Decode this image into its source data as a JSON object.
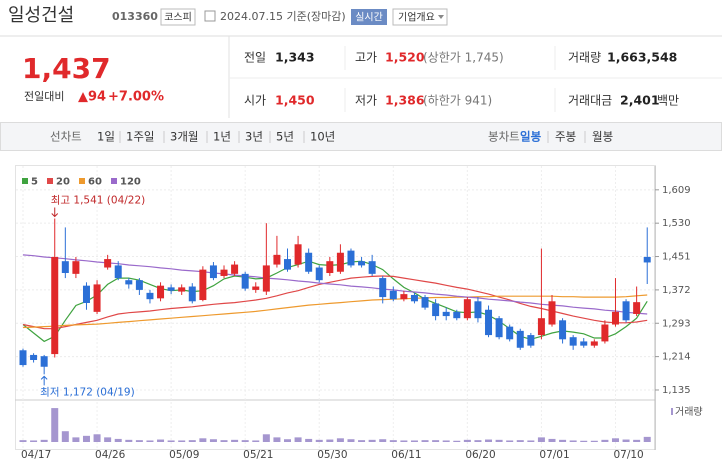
{
  "header": {
    "name": "일성건설",
    "code": "013360",
    "market": "코스피",
    "date": "2024.07.15 기준(장마감)",
    "realtime": "실시간",
    "company": "기업개요"
  },
  "price": {
    "current": "1,437",
    "change_label": "전일대비",
    "change": "▲94",
    "change_pct": "+7.00%"
  },
  "stats": {
    "prev_label": "전일",
    "prev": "1,343",
    "high_label": "고가",
    "high": "1,520",
    "upper": "(상한가 1,745)",
    "volume_label": "거래량",
    "volume": "1,663,548",
    "open_label": "시가",
    "open": "1,450",
    "low_label": "저가",
    "low": "1,386",
    "lower": "(하한가 941)",
    "amount_label": "거래대금",
    "amount": "2,401",
    "amount_unit": "백만"
  },
  "toolbar": {
    "line_label": "선차트",
    "line_periods": [
      "1일",
      "1주일",
      "3개월",
      "1년",
      "3년",
      "5년",
      "10년"
    ],
    "candle_label": "봉차트",
    "candle_periods": [
      "일봉",
      "주봉",
      "월봉"
    ]
  },
  "chart_data": {
    "type": "candlestick",
    "categories": [
      "04/17",
      null,
      null,
      null,
      null,
      null,
      null,
      "04/26",
      null,
      null,
      null,
      null,
      null,
      null,
      "05/09",
      null,
      null,
      null,
      null,
      null,
      null,
      "05/21",
      null,
      null,
      null,
      null,
      null,
      null,
      "05/30",
      null,
      null,
      null,
      null,
      null,
      null,
      "06/11",
      null,
      null,
      null,
      null,
      null,
      null,
      "06/20",
      null,
      null,
      null,
      null,
      null,
      null,
      "07/01",
      null,
      null,
      null,
      null,
      null,
      null,
      "07/10",
      null,
      null,
      null
    ],
    "open": [
      1229,
      1218,
      1215,
      1220,
      1440,
      1410,
      1382,
      1320,
      1425,
      1430,
      1395,
      1395,
      1365,
      1352,
      1378,
      1368,
      1380,
      1348,
      1430,
      1405,
      1410,
      1410,
      1372,
      1368,
      1432,
      1445,
      1432,
      1460,
      1425,
      1412,
      1415,
      1465,
      1440,
      1440,
      1400,
      1370,
      1350,
      1360,
      1355,
      1340,
      1320,
      1320,
      1305,
      1345,
      1325,
      1305,
      1285,
      1275,
      1265,
      1265,
      1290,
      1300,
      1260,
      1250,
      1240,
      1250,
      1290,
      1345,
      1315,
      1450
    ],
    "high": [
      1233,
      1222,
      1218,
      1541,
      1520,
      1450,
      1390,
      1395,
      1455,
      1440,
      1400,
      1400,
      1372,
      1390,
      1385,
      1385,
      1388,
      1428,
      1438,
      1430,
      1440,
      1415,
      1390,
      1530,
      1500,
      1470,
      1500,
      1470,
      1430,
      1450,
      1480,
      1470,
      1450,
      1455,
      1405,
      1380,
      1370,
      1365,
      1360,
      1350,
      1330,
      1325,
      1355,
      1355,
      1335,
      1310,
      1290,
      1280,
      1270,
      1470,
      1360,
      1305,
      1265,
      1258,
      1255,
      1300,
      1400,
      1350,
      1380,
      1520
    ],
    "low": [
      1190,
      1200,
      1172,
      1212,
      1400,
      1400,
      1325,
      1315,
      1420,
      1395,
      1375,
      1360,
      1340,
      1345,
      1362,
      1360,
      1340,
      1345,
      1395,
      1400,
      1405,
      1370,
      1365,
      1360,
      1425,
      1415,
      1425,
      1410,
      1390,
      1405,
      1410,
      1425,
      1425,
      1405,
      1340,
      1345,
      1345,
      1340,
      1325,
      1300,
      1300,
      1300,
      1300,
      1295,
      1260,
      1255,
      1250,
      1230,
      1235,
      1255,
      1285,
      1245,
      1230,
      1235,
      1235,
      1245,
      1285,
      1295,
      1310,
      1386
    ],
    "close": [
      1194,
      1206,
      1190,
      1450,
      1412,
      1440,
      1341,
      1385,
      1445,
      1400,
      1385,
      1372,
      1350,
      1382,
      1370,
      1378,
      1345,
      1420,
      1400,
      1420,
      1432,
      1375,
      1380,
      1430,
      1455,
      1420,
      1480,
      1415,
      1395,
      1440,
      1460,
      1430,
      1430,
      1410,
      1355,
      1350,
      1362,
      1345,
      1330,
      1310,
      1310,
      1305,
      1350,
      1305,
      1265,
      1260,
      1255,
      1235,
      1240,
      1305,
      1345,
      1255,
      1240,
      1240,
      1250,
      1290,
      1320,
      1300,
      1343,
      1437
    ],
    "volume": [
      600000,
      500000,
      700000,
      11000000,
      3500000,
      1500000,
      2000000,
      2500000,
      1500000,
      1000000,
      700000,
      600000,
      500000,
      800000,
      500000,
      500000,
      600000,
      1200000,
      900000,
      600000,
      700000,
      600000,
      500000,
      2500000,
      1500000,
      900000,
      1500000,
      1000000,
      700000,
      800000,
      1200000,
      900000,
      600000,
      700000,
      900000,
      600000,
      500000,
      500000,
      600000,
      600000,
      500000,
      400000,
      700000,
      600000,
      800000,
      700000,
      500000,
      600000,
      500000,
      1500000,
      1000000,
      700000,
      500000,
      400000,
      400000,
      700000,
      1200000,
      800000,
      700000,
      1663548
    ],
    "volume_ylim": [
      0,
      12000000
    ],
    "volume_label": "거래량",
    "volume_color": "#a596cf",
    "up_color": "#e0292b",
    "down_color": "#2b6fd6",
    "series": [
      {
        "name": "5",
        "color": "#3fa33f",
        "values": [
          1290,
          1270,
          1250,
          1262,
          1300,
          1335,
          1345,
          1360,
          1385,
          1400,
          1400,
          1395,
          1385,
          1375,
          1370,
          1372,
          1368,
          1370,
          1382,
          1398,
          1405,
          1402,
          1398,
          1400,
          1412,
          1425,
          1432,
          1440,
          1432,
          1430,
          1432,
          1438,
          1440,
          1432,
          1420,
          1398,
          1378,
          1365,
          1350,
          1340,
          1330,
          1320,
          1318,
          1320,
          1312,
          1298,
          1280,
          1262,
          1255,
          1262,
          1270,
          1275,
          1272,
          1268,
          1258,
          1258,
          1268,
          1285,
          1305,
          1345
        ]
      },
      {
        "name": "20",
        "color": "#e04848",
        "values": [
          1290,
          1285,
          1280,
          1280,
          1285,
          1290,
          1295,
          1300,
          1308,
          1315,
          1318,
          1320,
          1322,
          1325,
          1328,
          1330,
          1332,
          1335,
          1338,
          1340,
          1342,
          1345,
          1348,
          1352,
          1358,
          1365,
          1370,
          1378,
          1385,
          1390,
          1395,
          1400,
          1402,
          1404,
          1405,
          1404,
          1400,
          1396,
          1392,
          1388,
          1383,
          1378,
          1374,
          1368,
          1362,
          1355,
          1348,
          1340,
          1333,
          1328,
          1322,
          1316,
          1310,
          1305,
          1300,
          1296,
          1294,
          1294,
          1296,
          1300
        ]
      },
      {
        "name": "60",
        "color": "#ee9a2e",
        "values": [
          1283,
          1284,
          1285,
          1286,
          1288,
          1289,
          1290,
          1291,
          1293,
          1295,
          1297,
          1299,
          1301,
          1303,
          1305,
          1307,
          1309,
          1311,
          1313,
          1315,
          1317,
          1319,
          1321,
          1324,
          1327,
          1330,
          1333,
          1336,
          1338,
          1340,
          1342,
          1344,
          1346,
          1348,
          1349,
          1350,
          1351,
          1352,
          1353,
          1354,
          1354,
          1355,
          1355,
          1356,
          1356,
          1357,
          1357,
          1357,
          1357,
          1357,
          1357,
          1356,
          1356,
          1355,
          1355,
          1355,
          1355,
          1356,
          1358,
          1360
        ]
      },
      {
        "name": "120",
        "color": "#9a6acb",
        "values": [
          1455,
          1453,
          1450,
          1448,
          1446,
          1443,
          1441,
          1438,
          1436,
          1434,
          1431,
          1429,
          1427,
          1424,
          1422,
          1419,
          1417,
          1415,
          1412,
          1410,
          1407,
          1405,
          1403,
          1400,
          1398,
          1396,
          1393,
          1391,
          1388,
          1386,
          1384,
          1381,
          1379,
          1377,
          1374,
          1372,
          1369,
          1367,
          1365,
          1362,
          1360,
          1357,
          1355,
          1353,
          1350,
          1348,
          1346,
          1343,
          1341,
          1338,
          1336,
          1334,
          1331,
          1329,
          1327,
          1324,
          1322,
          1319,
          1317,
          1315
        ]
      }
    ],
    "ylim": [
      1116,
      1637
    ],
    "yticks": [
      {
        "value": 1135,
        "label": "1,135"
      },
      {
        "value": 1214,
        "label": "1,214"
      },
      {
        "value": 1293,
        "label": "1,293"
      },
      {
        "value": 1372,
        "label": "1,372"
      },
      {
        "value": 1451,
        "label": "1,451"
      },
      {
        "value": 1530,
        "label": "1,530"
      },
      {
        "value": 1609,
        "label": "1,609"
      }
    ],
    "grid": true,
    "annotations": [
      {
        "text": "최고 1,541 (04/22)",
        "value": 1541,
        "kind": "high"
      },
      {
        "text": "최저 1,172 (04/19)",
        "value": 1172,
        "kind": "low"
      }
    ]
  }
}
